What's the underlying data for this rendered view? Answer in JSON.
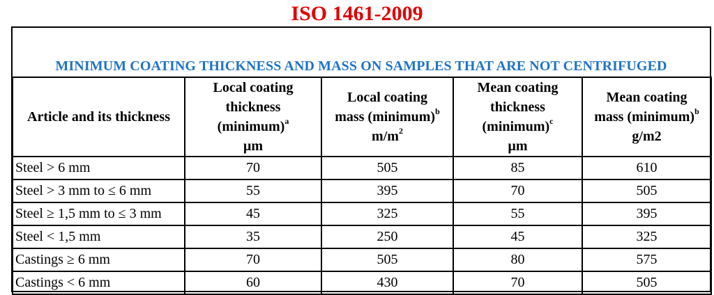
{
  "title": {
    "text": "ISO 1461-2009",
    "color": "#e00000"
  },
  "subtitle": {
    "text": "MINIMUM COATING THICKNESS AND MASS ON SAMPLES THAT ARE NOT CENTRIFUGED",
    "color": "#1f73c5"
  },
  "columns": [
    {
      "lines": [
        "Article and its thickness"
      ],
      "sup": ""
    },
    {
      "lines": [
        "Local coating",
        "thickness",
        "(minimum)",
        "µm"
      ],
      "sup": "a",
      "sup_line": 2
    },
    {
      "lines": [
        "Local coating",
        "mass (minimum)",
        "m/m"
      ],
      "sup": "b",
      "sup_line": 1,
      "sup2": "2",
      "sup2_line": 2
    },
    {
      "lines": [
        "Mean coating",
        "thickness",
        "(minimum)",
        "µm"
      ],
      "sup": "c",
      "sup_line": 2
    },
    {
      "lines": [
        "Mean coating",
        "mass (minimum)",
        "g/m2"
      ],
      "sup": "b",
      "sup_line": 1
    }
  ],
  "rows": [
    [
      "Steel > 6 mm",
      "70",
      "505",
      "85",
      "610"
    ],
    [
      "Steel > 3 mm to ≤ 6 mm",
      "55",
      "395",
      "70",
      "505"
    ],
    [
      "Steel ≥ 1,5 mm to ≤ 3 mm",
      "45",
      "325",
      "55",
      "395"
    ],
    [
      "Steel < 1,5 mm",
      "35",
      "250",
      "45",
      "325"
    ],
    [
      "Castings ≥ 6 mm",
      "70",
      "505",
      "80",
      "575"
    ],
    [
      "Castings < 6 mm",
      "60",
      "430",
      "70",
      "505"
    ]
  ]
}
